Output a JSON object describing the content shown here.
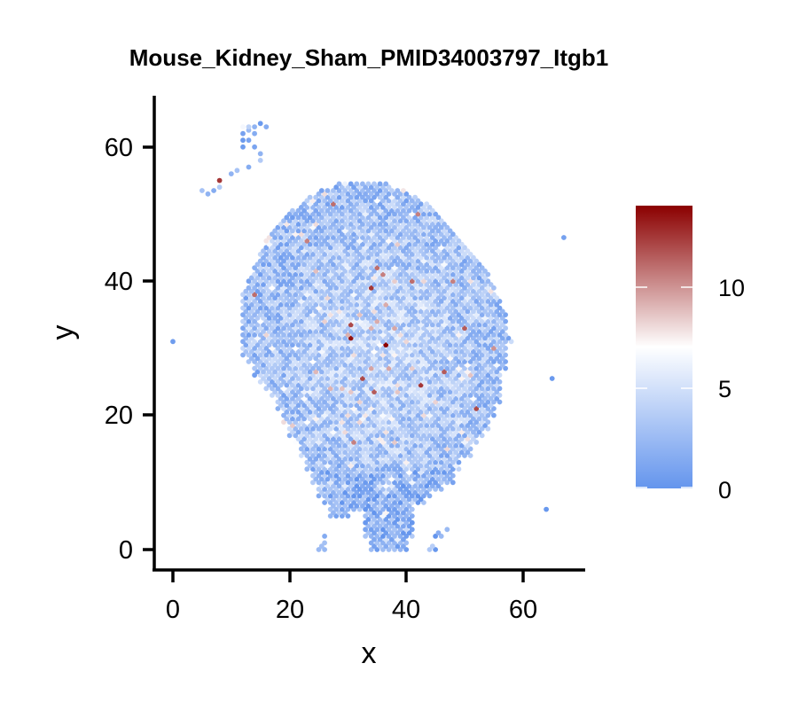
{
  "chart_data": {
    "type": "scatter",
    "subtype": "spatial-feature-plot",
    "title": "Mouse_Kidney_Sham_PMID34003797_Itgb1",
    "xlabel": "x",
    "ylabel": "y",
    "xlim": [
      -3.5,
      70
    ],
    "ylim": [
      -3,
      67.5
    ],
    "xticks": [
      0,
      20,
      40,
      60
    ],
    "yticks": [
      0,
      20,
      40,
      60
    ],
    "xtick_labels": [
      "0",
      "20",
      "40",
      "60"
    ],
    "ytick_labels": [
      "0",
      "20",
      "40",
      "60"
    ],
    "grid": false,
    "legend_position": "right",
    "colorbar": {
      "min": 0,
      "max": 14,
      "ticks": [
        0,
        5,
        10
      ],
      "tick_labels": [
        "0",
        "5",
        "10"
      ],
      "colors": [
        "#6495ED",
        "#FFFFFF",
        "#8B0000"
      ],
      "midpoint": 7
    },
    "tissue_rows": [
      {
        "y": 0,
        "xmin": 25,
        "xmax": 26,
        "x2min": 34,
        "x2max": 40,
        "x3min": 44,
        "x3max": 45
      },
      {
        "y": 1,
        "xmin": 26,
        "xmax": 26,
        "x2min": 34,
        "x2max": 40
      },
      {
        "y": 2,
        "xmin": 26,
        "xmax": 26,
        "x2min": 33,
        "x2max": 41,
        "x3min": 45,
        "x3max": 46
      },
      {
        "y": 3,
        "xmin": 33,
        "xmax": 41,
        "x2min": 47,
        "x2max": 47
      },
      {
        "y": 4,
        "xmin": 33,
        "xmax": 41
      },
      {
        "y": 5,
        "xmin": 27,
        "xmax": 30,
        "x2min": 33,
        "x2max": 41
      },
      {
        "y": 6,
        "xmin": 27,
        "xmax": 41
      },
      {
        "y": 7,
        "xmin": 26,
        "xmax": 43
      },
      {
        "y": 8,
        "xmin": 25,
        "xmax": 44
      },
      {
        "y": 9,
        "xmin": 25,
        "xmax": 46
      },
      {
        "y": 10,
        "xmin": 24,
        "xmax": 48
      },
      {
        "y": 11,
        "xmin": 24,
        "xmax": 48
      },
      {
        "y": 12,
        "xmin": 23,
        "xmax": 49
      },
      {
        "y": 13,
        "xmin": 23,
        "xmax": 49
      },
      {
        "y": 14,
        "xmin": 22,
        "xmax": 51
      },
      {
        "y": 15,
        "xmin": 22,
        "xmax": 51
      },
      {
        "y": 16,
        "xmin": 21,
        "xmax": 52
      },
      {
        "y": 17,
        "xmin": 20,
        "xmax": 53
      },
      {
        "y": 18,
        "xmin": 20,
        "xmax": 54
      },
      {
        "y": 19,
        "xmin": 19,
        "xmax": 54
      },
      {
        "y": 20,
        "xmin": 19,
        "xmax": 55
      },
      {
        "y": 21,
        "xmin": 18,
        "xmax": 55
      },
      {
        "y": 22,
        "xmin": 18,
        "xmax": 56
      },
      {
        "y": 23,
        "xmin": 17,
        "xmax": 56
      },
      {
        "y": 24,
        "xmin": 16,
        "xmax": 56
      },
      {
        "y": 25,
        "xmin": 15,
        "xmax": 56
      },
      {
        "y": 26,
        "xmin": 14,
        "xmax": 56
      },
      {
        "y": 27,
        "xmin": 14,
        "xmax": 57
      },
      {
        "y": 28,
        "xmin": 13,
        "xmax": 57
      },
      {
        "y": 29,
        "xmin": 12,
        "xmax": 57
      },
      {
        "y": 30,
        "xmin": 12,
        "xmax": 57
      },
      {
        "y": 31,
        "xmin": 12,
        "xmax": 58
      },
      {
        "y": 32,
        "xmin": 12,
        "xmax": 57
      },
      {
        "y": 33,
        "xmin": 12,
        "xmax": 57
      },
      {
        "y": 34,
        "xmin": 12,
        "xmax": 57
      },
      {
        "y": 35,
        "xmin": 12,
        "xmax": 57
      },
      {
        "y": 36,
        "xmin": 12,
        "xmax": 56
      },
      {
        "y": 37,
        "xmin": 12,
        "xmax": 56
      },
      {
        "y": 38,
        "xmin": 12,
        "xmax": 55
      },
      {
        "y": 39,
        "xmin": 13,
        "xmax": 55
      },
      {
        "y": 40,
        "xmin": 13,
        "xmax": 54
      },
      {
        "y": 41,
        "xmin": 14,
        "xmax": 54
      },
      {
        "y": 42,
        "xmin": 14,
        "xmax": 53
      },
      {
        "y": 43,
        "xmin": 15,
        "xmax": 52
      },
      {
        "y": 44,
        "xmin": 15,
        "xmax": 51
      },
      {
        "y": 45,
        "xmin": 16,
        "xmax": 50
      },
      {
        "y": 46,
        "xmin": 16,
        "xmax": 49
      },
      {
        "y": 47,
        "xmin": 17,
        "xmax": 48
      },
      {
        "y": 48,
        "xmin": 18,
        "xmax": 47
      },
      {
        "y": 49,
        "xmin": 19,
        "xmax": 46
      },
      {
        "y": 50,
        "xmin": 20,
        "xmax": 45
      },
      {
        "y": 51,
        "xmin": 22,
        "xmax": 44
      },
      {
        "y": 52,
        "xmin": 23,
        "xmax": 42
      },
      {
        "y": 53,
        "xmin": 25,
        "xmax": 40
      },
      {
        "y": 54,
        "xmin": 28,
        "xmax": 37
      }
    ],
    "outlier_points": [
      {
        "x": 0,
        "y": 31,
        "value": 0.5
      },
      {
        "x": 67,
        "y": 46.5,
        "value": 0.8
      },
      {
        "x": 65,
        "y": 25.5,
        "value": 0.3
      },
      {
        "x": 64,
        "y": 6,
        "value": 0.2
      },
      {
        "x": 5,
        "y": 53.5,
        "value": 3
      },
      {
        "x": 6,
        "y": 53,
        "value": 2
      },
      {
        "x": 7,
        "y": 53.5,
        "value": 1.5
      },
      {
        "x": 8,
        "y": 54,
        "value": 3.5
      },
      {
        "x": 8,
        "y": 55,
        "value": 12.5
      },
      {
        "x": 10,
        "y": 56,
        "value": 2
      },
      {
        "x": 11,
        "y": 56.5,
        "value": 3
      },
      {
        "x": 13,
        "y": 57,
        "value": 1.5
      },
      {
        "x": 15,
        "y": 58,
        "value": 3.5
      },
      {
        "x": 15,
        "y": 59,
        "value": 2
      },
      {
        "x": 14,
        "y": 60,
        "value": 1
      },
      {
        "x": 12,
        "y": 60,
        "value": 0.5
      },
      {
        "x": 12,
        "y": 61,
        "value": 0.3
      },
      {
        "x": 13,
        "y": 61,
        "value": 1
      },
      {
        "x": 14,
        "y": 62,
        "value": 1.5
      },
      {
        "x": 12,
        "y": 62,
        "value": 0.8
      },
      {
        "x": 13,
        "y": 62.5,
        "value": 2.5
      },
      {
        "x": 12,
        "y": 63,
        "value": 6.5
      },
      {
        "x": 13,
        "y": 63,
        "value": 4
      },
      {
        "x": 14,
        "y": 63,
        "value": 2
      },
      {
        "x": 15,
        "y": 63.5,
        "value": 0.3
      },
      {
        "x": 16,
        "y": 63,
        "value": 1.5
      }
    ],
    "hotspots": [
      {
        "x": 37,
        "y": 30.5,
        "value": 14
      },
      {
        "x": 31,
        "y": 31.5,
        "value": 13.5
      },
      {
        "x": 34,
        "y": 39,
        "value": 12.5
      },
      {
        "x": 31,
        "y": 33.5,
        "value": 12
      },
      {
        "x": 33,
        "y": 25.5,
        "value": 12
      },
      {
        "x": 35,
        "y": 23.5,
        "value": 11.5
      },
      {
        "x": 43,
        "y": 24.5,
        "value": 12.5
      },
      {
        "x": 52,
        "y": 21,
        "value": 12
      },
      {
        "x": 47,
        "y": 26.5,
        "value": 11.5
      },
      {
        "x": 50,
        "y": 33,
        "value": 11.5
      },
      {
        "x": 14,
        "y": 38,
        "value": 11
      },
      {
        "x": 41,
        "y": 40,
        "value": 11
      },
      {
        "x": 35,
        "y": 42,
        "value": 11
      },
      {
        "x": 42,
        "y": 50,
        "value": 10.5
      },
      {
        "x": 28,
        "y": 51.5,
        "value": 11
      },
      {
        "x": 23,
        "y": 46,
        "value": 10.5
      },
      {
        "x": 36,
        "y": 41,
        "value": 10.5
      },
      {
        "x": 31,
        "y": 16,
        "value": 10.5
      },
      {
        "x": 48,
        "y": 40,
        "value": 10.5
      },
      {
        "x": 55,
        "y": 30,
        "value": 10
      }
    ]
  }
}
